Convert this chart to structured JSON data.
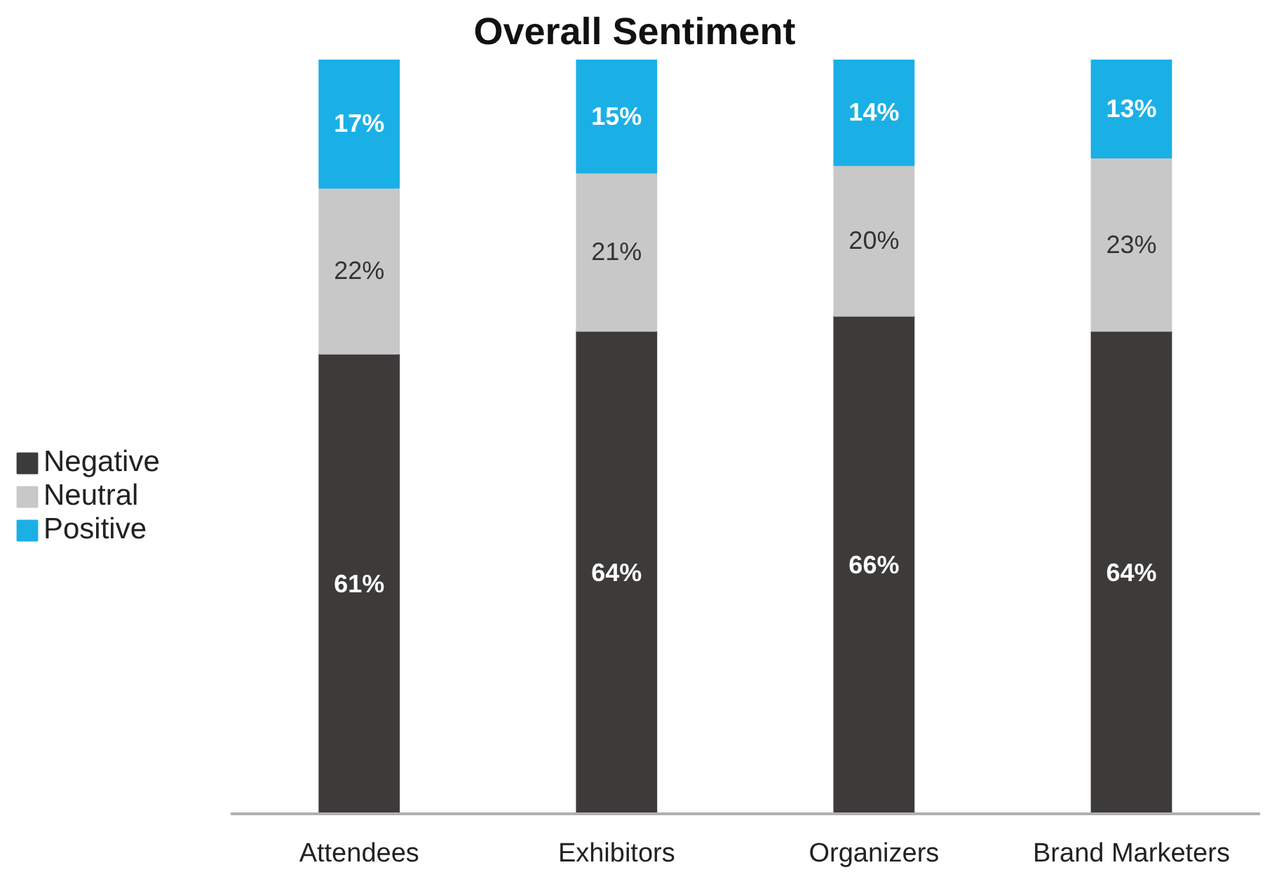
{
  "chart_data": {
    "type": "bar",
    "title": "Overall Sentiment",
    "categories": [
      "Attendees",
      "Exhibitors",
      "Organizers",
      "Brand Marketers"
    ],
    "stacked": true,
    "legend": "left",
    "grid": false,
    "series": [
      {
        "name": "Negative",
        "color": "#3d3a3a",
        "values": [
          61,
          64,
          66,
          64
        ],
        "value_labels": [
          "61%",
          "64%",
          "66%",
          "64%"
        ]
      },
      {
        "name": "Neutral",
        "color": "#c8c8c8",
        "values": [
          22,
          21,
          20,
          23
        ],
        "value_labels": [
          "22%",
          "21%",
          "20%",
          "23%"
        ]
      },
      {
        "name": "Positive",
        "color": "#1ab0e6",
        "values": [
          17,
          15,
          14,
          13
        ],
        "value_labels": [
          "17%",
          "15%",
          "14%",
          "13%"
        ]
      }
    ]
  }
}
